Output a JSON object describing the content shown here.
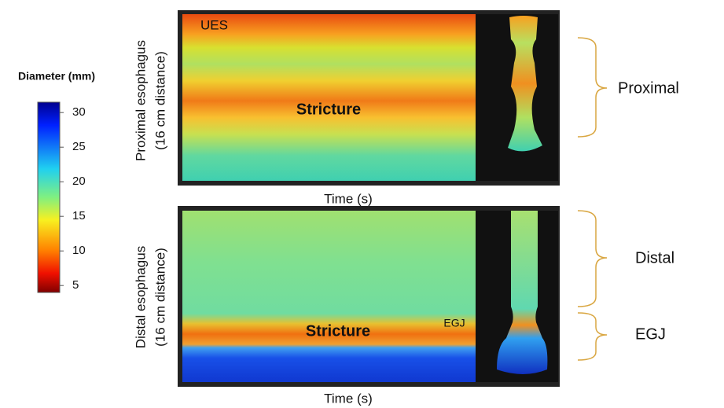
{
  "colorbar": {
    "title": "Diameter (mm)",
    "ticks": [
      30,
      25,
      20,
      15,
      10,
      5
    ],
    "lim": [
      4,
      31.5
    ]
  },
  "panels": [
    {
      "y_label": [
        "Proximal esophagus",
        "(16 cm distance)"
      ],
      "x_label": "Time (s)",
      "annotations": [
        "UES",
        "Stricture"
      ]
    },
    {
      "y_label": [
        "Distal esophagus",
        "(16 cm distance)"
      ],
      "x_label": "Time (s)",
      "annotations": [
        "Stricture",
        "EGJ"
      ]
    }
  ],
  "brackets": [
    "Proximal",
    "Distal",
    "EGJ"
  ]
}
